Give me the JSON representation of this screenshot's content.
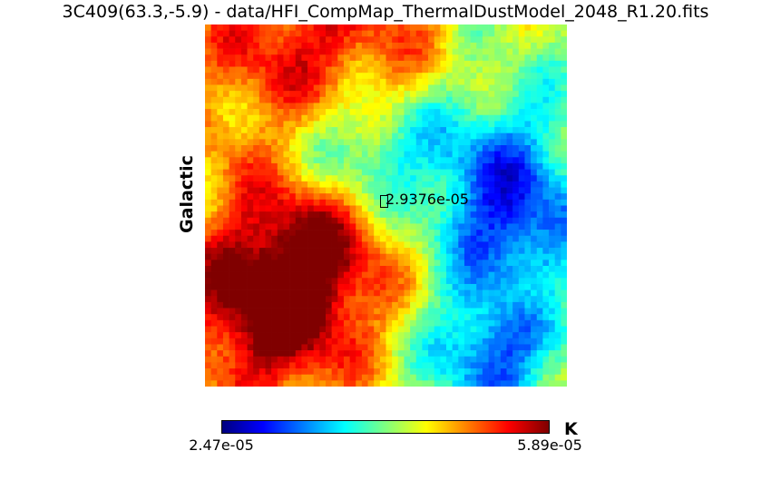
{
  "title": "3C409(63.3,-5.9) - data/HFI_CompMap_ThermalDustModel_2048_R1.20.fits",
  "coordinate_system": "Galactic",
  "marker": {
    "label": "2.9376e-05"
  },
  "colorbar": {
    "min_label": "2.47e-05",
    "max_label": "5.89e-05",
    "unit": "K",
    "colormap": "jet",
    "stops": [
      "#00007f",
      "#0000ff",
      "#007fff",
      "#00ffff",
      "#7fff7f",
      "#ffff00",
      "#ff7f00",
      "#ff0000",
      "#7f0000"
    ]
  }
}
